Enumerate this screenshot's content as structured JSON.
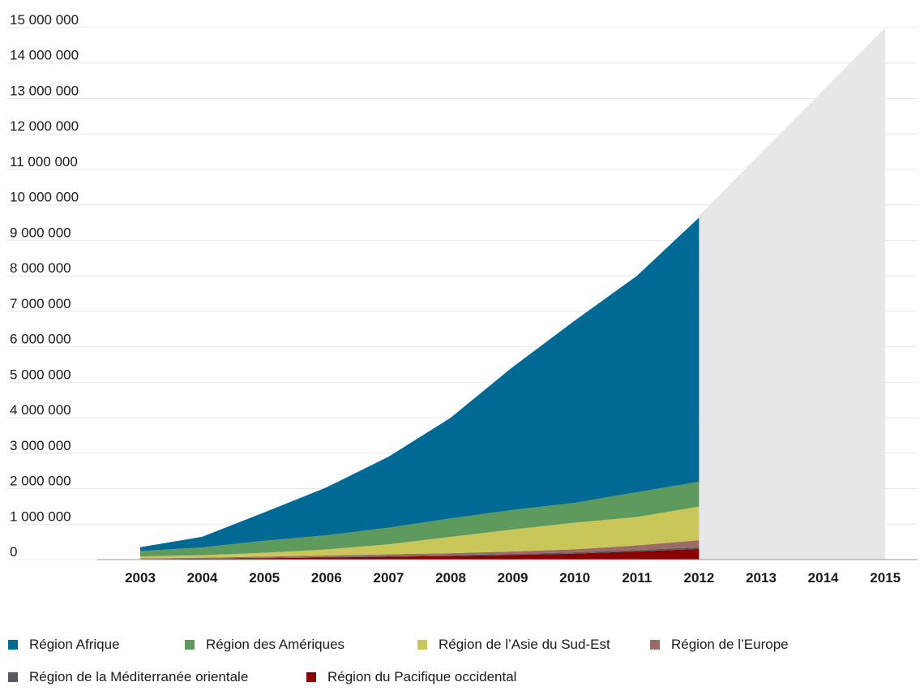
{
  "chart_data": {
    "type": "area",
    "stacked": true,
    "title": "",
    "xlabel": "",
    "ylabel": "",
    "ylim": [
      0,
      15000000
    ],
    "y_tick_values": [
      0,
      1000000,
      2000000,
      3000000,
      4000000,
      5000000,
      6000000,
      7000000,
      8000000,
      9000000,
      10000000,
      11000000,
      12000000,
      13000000,
      14000000,
      15000000
    ],
    "y_tick_labels": [
      "0",
      "1 000 000",
      "2 000 000",
      "3 000 000",
      "4 000 000",
      "5 000 000",
      "6 000 000",
      "7 000 000",
      "8 000 000",
      "9 000 000",
      "10 000 000",
      "11 000 000",
      "12 000 000",
      "13 000 000",
      "14 000 000",
      "15 000 000"
    ],
    "x_ticks": [
      "2003",
      "2004",
      "2005",
      "2006",
      "2007",
      "2008",
      "2009",
      "2010",
      "2011",
      "2012",
      "2013",
      "2014",
      "2015"
    ],
    "grid": true,
    "legend_position": "bottom",
    "x": [
      2003,
      2004,
      2005,
      2006,
      2007,
      2008,
      2009,
      2010,
      2011,
      2012
    ],
    "series": [
      {
        "name": "Région du Pacifique occidental",
        "color": "#8b0000",
        "values": [
          15000,
          25000,
          40000,
          60000,
          80000,
          100000,
          130000,
          170000,
          230000,
          300000
        ]
      },
      {
        "name": "Région de la Méditerranée orientale",
        "color": "#555a62",
        "values": [
          5000,
          8000,
          12000,
          15000,
          20000,
          25000,
          30000,
          35000,
          40000,
          45000
        ]
      },
      {
        "name": "Région de l’Europe",
        "color": "#9b6b66",
        "values": [
          15000,
          20000,
          30000,
          40000,
          50000,
          55000,
          70000,
          85000,
          130000,
          200000
        ]
      },
      {
        "name": "Région de l’Asie du Sud-Est",
        "color": "#c9c65a",
        "values": [
          55000,
          70000,
          110000,
          170000,
          280000,
          460000,
          620000,
          750000,
          800000,
          950000
        ]
      },
      {
        "name": "Région des Amériques",
        "color": "#5e9a5e",
        "values": [
          150000,
          220000,
          340000,
          400000,
          470000,
          520000,
          550000,
          560000,
          700000,
          700000
        ]
      },
      {
        "name": "Région Afrique",
        "color": "#006994",
        "values": [
          110000,
          300000,
          800000,
          1350000,
          2000000,
          2840000,
          4030000,
          5140000,
          6100000,
          7450000
        ]
      }
    ],
    "projection": {
      "color": "#e6e7e9",
      "x": [
        2012,
        2015
      ],
      "values": [
        9700000,
        15000000
      ]
    },
    "legend": [
      {
        "label": "Région Afrique",
        "color": "#006994"
      },
      {
        "label": "Région des Amériques",
        "color": "#5e9a5e"
      },
      {
        "label": "Région de l’Asie du Sud-Est",
        "color": "#c9c65a"
      },
      {
        "label": "Région de l’Europe",
        "color": "#9b6b66"
      },
      {
        "label": "Région de la Méditerranée orientale",
        "color": "#555a62"
      },
      {
        "label": "Région du Pacifique occidental",
        "color": "#8b0000"
      }
    ]
  }
}
